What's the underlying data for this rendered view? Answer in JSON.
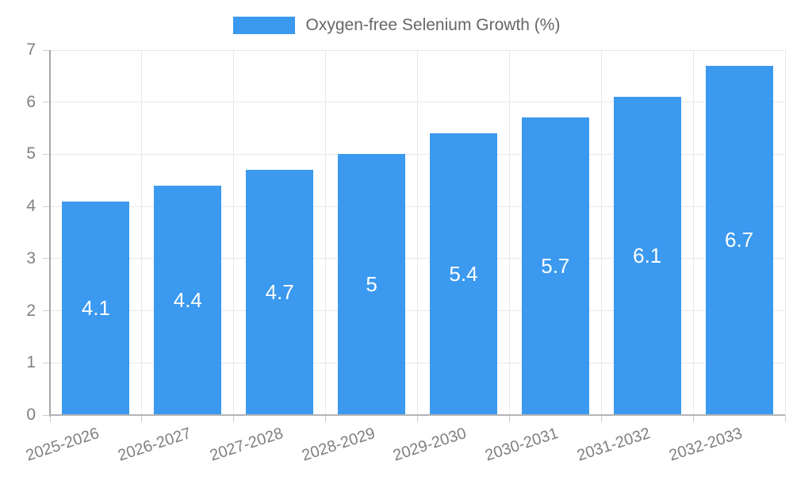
{
  "legend": {
    "label": "Oxygen-free Selenium Growth (%)"
  },
  "colors": {
    "bar": "#3b99ef",
    "grid": "#e8e8e8",
    "axis": "#a6a6a6",
    "tick": "#cccccc",
    "tick_text": "#808080",
    "legend_text": "#666666",
    "bar_label_text": "#ffffff",
    "background": "#ffffff"
  },
  "chart_data": {
    "type": "bar",
    "title": "Oxygen-free Selenium Growth (%)",
    "categories": [
      "2025-2026",
      "2026-2027",
      "2027-2028",
      "2028-2029",
      "2029-2030",
      "2030-2031",
      "2031-2032",
      "2032-2033"
    ],
    "values": [
      4.1,
      4.4,
      4.7,
      5,
      5.4,
      5.7,
      6.1,
      6.7
    ],
    "bar_labels": [
      "4.1",
      "4.4",
      "4.7",
      "5",
      "5.4",
      "5.7",
      "6.1",
      "6.7"
    ],
    "xlabel": "",
    "ylabel": "",
    "ylim": [
      0,
      7
    ],
    "yticks": [
      0,
      1,
      2,
      3,
      4,
      5,
      6,
      7
    ],
    "grid": true,
    "legend_position": "top",
    "bar_label_position": "center",
    "x_label_rotation_deg": -18
  }
}
